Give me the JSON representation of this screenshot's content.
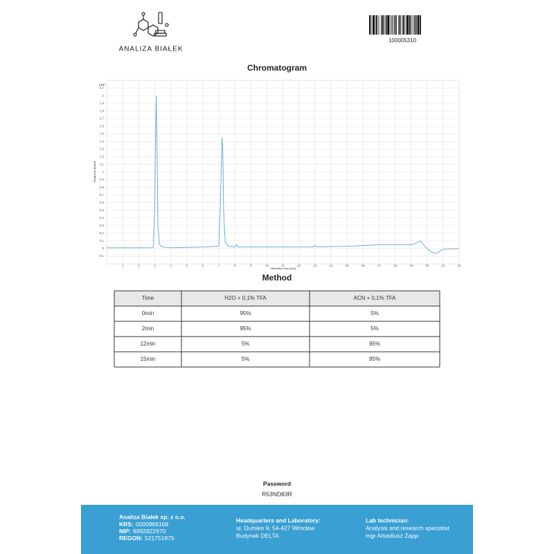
{
  "header": {
    "logo_text": "ANALIZA BIAŁEK",
    "barcode_number": "100005310"
  },
  "chart_data": {
    "type": "line",
    "title": "Chromatogram",
    "y_multiplier": "x10⁵",
    "ylabel": "Response [mAU]",
    "xlabel": "Retention time [min]",
    "color": "#5aa6d6",
    "grid": true,
    "x": [
      0,
      2.9,
      3.0,
      3.05,
      3.1,
      3.15,
      3.2,
      3.3,
      3.5,
      4,
      6,
      7.0,
      7.1,
      7.2,
      7.25,
      7.3,
      7.4,
      7.6,
      8,
      8.1,
      8.2,
      10,
      12,
      12.9,
      13,
      13.1,
      15,
      16,
      17,
      18,
      19,
      19.4,
      19.6,
      19.9,
      20.3,
      20.6,
      21,
      22
    ],
    "values": [
      0.01,
      0.01,
      0.5,
      1.5,
      2.0,
      1.2,
      0.3,
      0.05,
      0.02,
      0.01,
      0.02,
      0.03,
      0.6,
      1.45,
      1.3,
      0.5,
      0.08,
      0.03,
      0.02,
      0.05,
      0.02,
      0.02,
      0.02,
      0.02,
      0.04,
      0.02,
      0.03,
      0.04,
      0.05,
      0.05,
      0.05,
      0.08,
      0.1,
      0.02,
      -0.05,
      -0.06,
      -0.01,
      0.0
    ],
    "xlim": [
      0,
      22
    ],
    "xticks": [
      1,
      2,
      3,
      4,
      5,
      6,
      7,
      8,
      9,
      10,
      11,
      12,
      13,
      14,
      15,
      16,
      17,
      18,
      19,
      20,
      21,
      22
    ],
    "ylim": [
      -0.2,
      2.2
    ],
    "yticks": [
      {
        "value": -0.1,
        "label": "-0,1"
      },
      0,
      {
        "value": 0.1,
        "label": "0,1"
      },
      {
        "value": 0.2,
        "label": "0,2"
      },
      {
        "value": 0.3,
        "label": "0,3"
      },
      {
        "value": 0.4,
        "label": "0,4"
      },
      {
        "value": 0.5,
        "label": "0,5"
      },
      {
        "value": 0.6,
        "label": "0,6"
      },
      {
        "value": 0.7,
        "label": "0,7"
      },
      {
        "value": 0.8,
        "label": "0,8"
      },
      {
        "value": 0.9,
        "label": "0,9"
      },
      1,
      {
        "value": 1.1,
        "label": "1,1"
      },
      {
        "value": 1.2,
        "label": "1,2"
      },
      {
        "value": 1.3,
        "label": "1,3"
      },
      {
        "value": 1.4,
        "label": "1,4"
      },
      {
        "value": 1.5,
        "label": "1,5"
      },
      {
        "value": 1.6,
        "label": "1,6"
      },
      {
        "value": 1.7,
        "label": "1,7"
      },
      {
        "value": 1.8,
        "label": "1,8"
      },
      {
        "value": 1.9,
        "label": "1,9"
      },
      2,
      {
        "value": 2.1,
        "label": "2,1"
      }
    ]
  },
  "method": {
    "title": "Method",
    "table": {
      "header": [
        "Time",
        "H2O + 0,1% TFA",
        "ACN + 0,1% TFA"
      ],
      "rows": [
        [
          "0min",
          "95%",
          "5%"
        ],
        [
          "2min",
          "95%",
          "5%"
        ],
        [
          "12min",
          "5%",
          "95%"
        ],
        [
          "15min",
          "5%",
          "95%"
        ]
      ]
    }
  },
  "password": {
    "label": "Password",
    "value": "R53ND83R"
  },
  "footer": {
    "company": {
      "name": "Analiza Białek sp. z o.o.",
      "lines": [
        [
          "KRS:",
          "0000966168"
        ],
        [
          "NIP:",
          "8992922970"
        ],
        [
          "REGON:",
          "521751875"
        ]
      ]
    },
    "headquarters": {
      "title": "Headquarters and Laboratory:",
      "lines": [
        "ul. Duńska 9, 54-427 Wrocław",
        "Budynek DELTA"
      ]
    },
    "technician": {
      "title": "Lab technician:",
      "lines": [
        "Analysis and research specialist",
        "mgr Arkadiusz Zając"
      ]
    }
  }
}
